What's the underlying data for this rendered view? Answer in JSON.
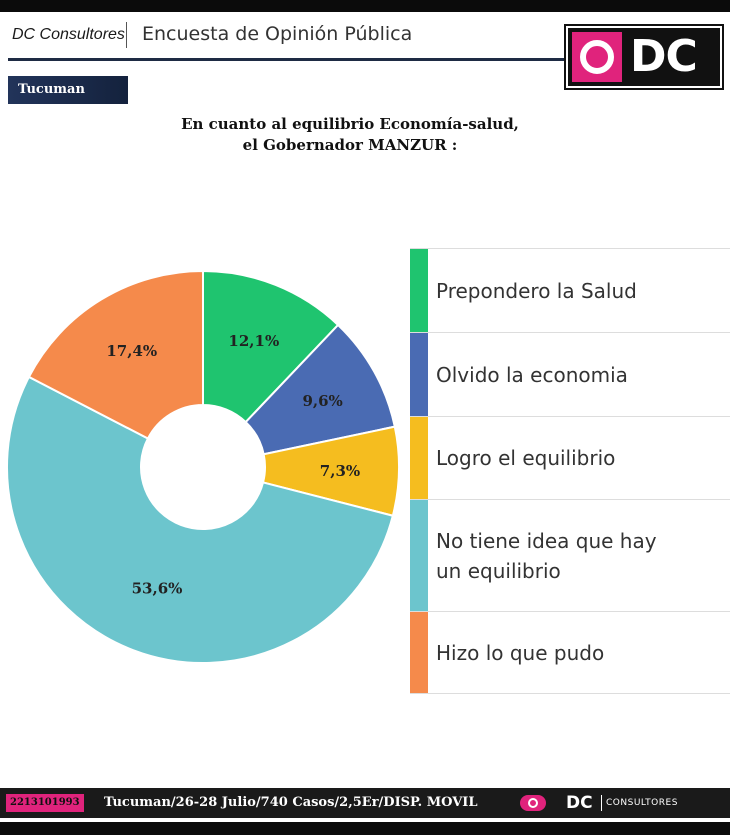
{
  "header": {
    "brand": "DC Consultores",
    "title": "Encuesta de Opinión Pública",
    "logo_text": "DC"
  },
  "region": "Tucuman",
  "question": {
    "line1": "En cuanto al equilibrio Economía-salud,",
    "line2": "el Gobernador MANZUR :"
  },
  "chart_data": {
    "type": "pie",
    "donut": true,
    "legend_position": "right",
    "categories": [
      "Prepondero la Salud",
      "Olvido la economia",
      "Logro el equilibrio",
      "No tiene idea que hay un equilibrio",
      "Hizo lo que pudo"
    ],
    "values": [
      12.1,
      9.6,
      7.3,
      53.6,
      17.4
    ],
    "value_labels": [
      "12,1%",
      "9,6%",
      "7,3%",
      "53,6%",
      "17,4%"
    ],
    "colors": [
      "#1fc46f",
      "#4a6bb3",
      "#f5bd1f",
      "#6cc5cd",
      "#f58a4b"
    ]
  },
  "legend": {
    "items": [
      {
        "line1": "Prepondero la Salud",
        "line2": ""
      },
      {
        "line1": "Olvido la economia",
        "line2": ""
      },
      {
        "line1": "Logro el equilibrio",
        "line2": ""
      },
      {
        "line1": "No tiene idea que hay",
        "line2": "un equilibrio"
      },
      {
        "line1": "Hizo lo que pudo",
        "line2": ""
      }
    ]
  },
  "footer": {
    "phone": "2213101993",
    "info": "Tucuman/26-28 Julio/740 Casos/2,5Er/DISP. MOVIL",
    "logo_dc": "DC",
    "logo_text": "CONSULTORES"
  }
}
